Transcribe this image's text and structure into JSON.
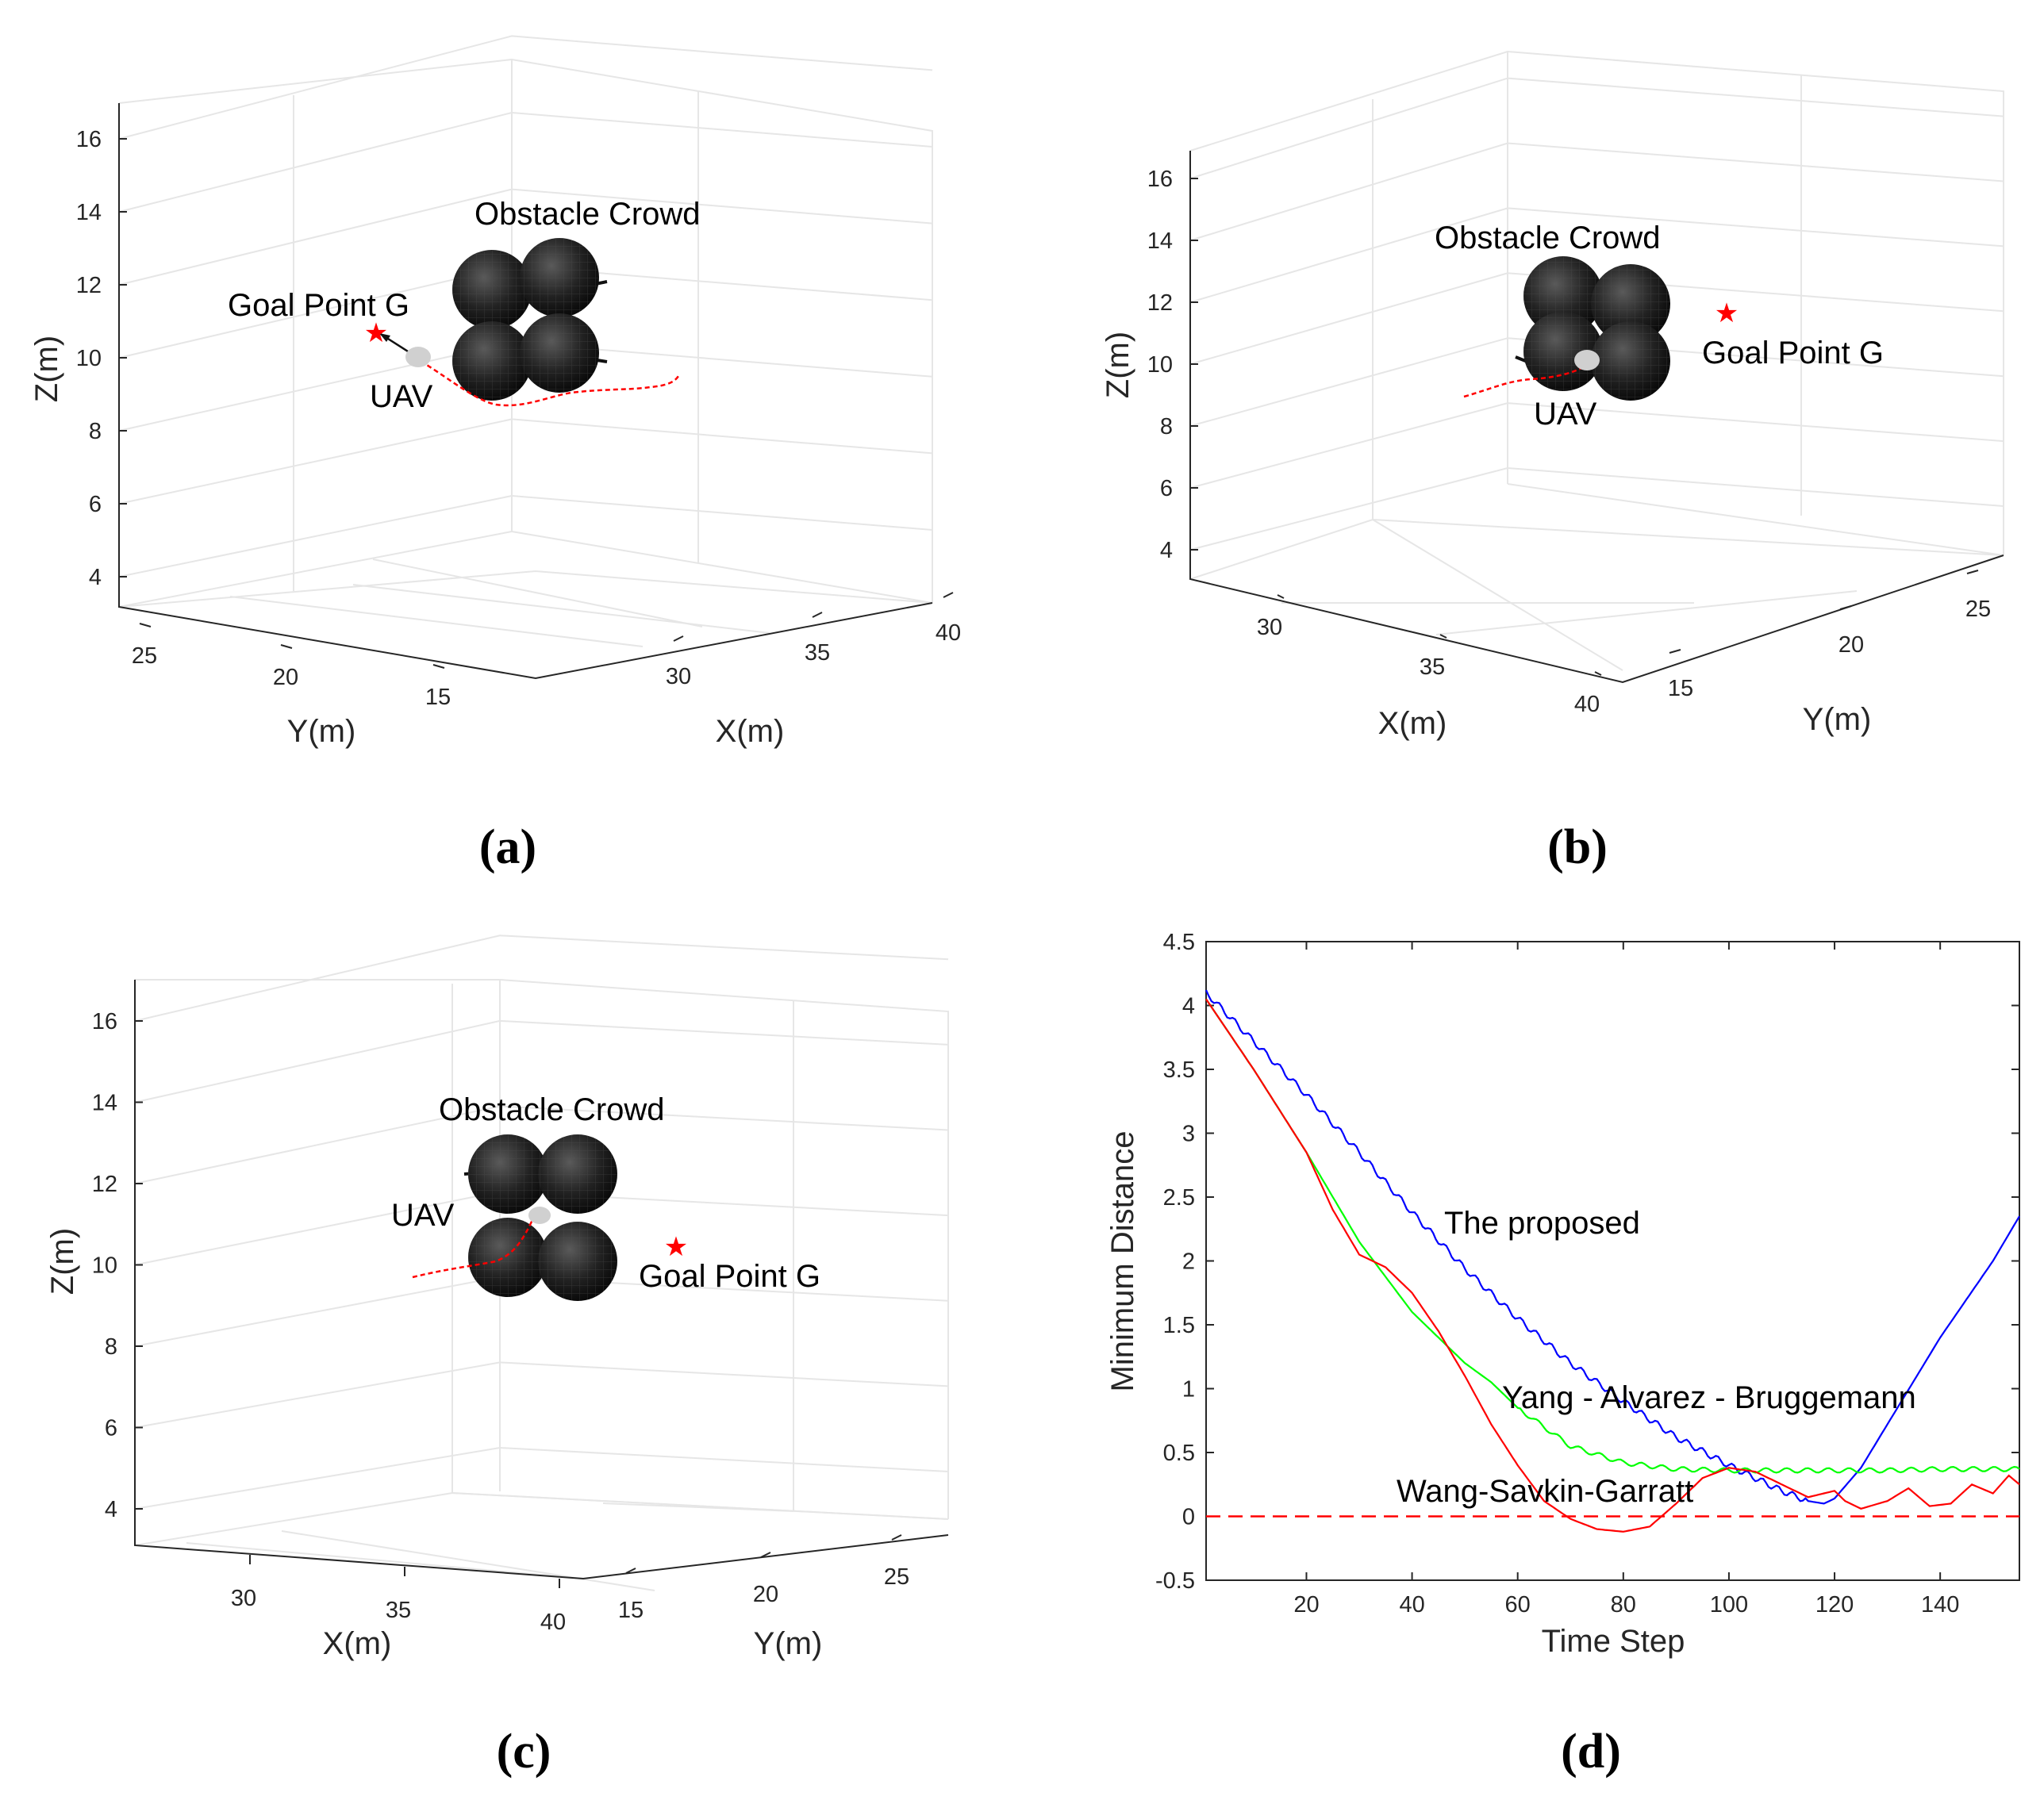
{
  "captions": [
    "(a)",
    "(b)",
    "(c)",
    "(d)"
  ],
  "panels_3d": [
    {
      "id": "a",
      "zlabel": "Z(m)",
      "z_ticks": [
        "4",
        "6",
        "8",
        "10",
        "12",
        "14",
        "16"
      ],
      "left_axis_label": "Y(m)",
      "left_ticks": [
        "25",
        "20",
        "15"
      ],
      "right_axis_label": "X(m)",
      "right_ticks": [
        "30",
        "35",
        "40"
      ],
      "obstacle_label": "Obstacle Crowd",
      "goal_label": "Goal Point G",
      "uav_label": "UAV"
    },
    {
      "id": "b",
      "zlabel": "Z(m)",
      "z_ticks": [
        "4",
        "6",
        "8",
        "10",
        "12",
        "14",
        "16"
      ],
      "left_axis_label": "X(m)",
      "left_ticks": [
        "30",
        "35",
        "40"
      ],
      "right_axis_label": "Y(m)",
      "right_ticks": [
        "15",
        "20",
        "25"
      ],
      "obstacle_label": "Obstacle Crowd",
      "goal_label": "Goal Point G",
      "uav_label": "UAV"
    },
    {
      "id": "c",
      "zlabel": "Z(m)",
      "z_ticks": [
        "4",
        "6",
        "8",
        "10",
        "12",
        "14",
        "16"
      ],
      "left_axis_label": "X(m)",
      "left_ticks": [
        "30",
        "35",
        "40"
      ],
      "right_axis_label": "Y(m)",
      "right_ticks": [
        "15",
        "20",
        "25"
      ],
      "obstacle_label": "Obstacle Crowd",
      "goal_label": "Goal Point G",
      "uav_label": "UAV"
    }
  ],
  "chart_data": {
    "type": "line",
    "xlabel": "Time Step",
    "ylabel": "Minimum Distance",
    "xlim": [
      1,
      155
    ],
    "ylim": [
      -0.5,
      4.5
    ],
    "x_ticks": [
      20,
      40,
      60,
      80,
      100,
      120,
      140
    ],
    "y_ticks": [
      -0.5,
      0,
      0.5,
      1,
      1.5,
      2,
      2.5,
      3,
      3.5,
      4,
      4.5
    ],
    "y_tick_labels": [
      "-0.5",
      "0",
      "0.5",
      "1",
      "1.5",
      "2",
      "2.5",
      "3",
      "3.5",
      "4",
      "4.5"
    ],
    "series": [
      {
        "name": "The proposed",
        "color": "#0000ff",
        "x": [
          1,
          10,
          20,
          30,
          40,
          50,
          60,
          70,
          80,
          90,
          100,
          105,
          110,
          115,
          118,
          120,
          125,
          130,
          135,
          140,
          145,
          150,
          155
        ],
        "y": [
          4.1,
          3.72,
          3.3,
          2.85,
          2.38,
          1.94,
          1.55,
          1.2,
          0.9,
          0.62,
          0.4,
          0.3,
          0.2,
          0.12,
          0.1,
          0.14,
          0.38,
          0.72,
          1.06,
          1.4,
          1.7,
          2.0,
          2.35
        ]
      },
      {
        "name": "Yang - Alvarez - Bruggemann",
        "color": "#00ff00",
        "x": [
          1,
          10,
          20,
          30,
          40,
          50,
          55,
          60,
          70,
          80,
          90,
          100,
          110,
          120,
          130,
          140,
          150,
          155
        ],
        "y": [
          4.05,
          3.5,
          2.85,
          2.15,
          1.6,
          1.2,
          1.05,
          0.85,
          0.55,
          0.42,
          0.37,
          0.36,
          0.36,
          0.36,
          0.36,
          0.37,
          0.37,
          0.37
        ]
      },
      {
        "name": "Wang-Savkin-Garratt",
        "color": "#ff0000",
        "x": [
          1,
          10,
          20,
          25,
          30,
          35,
          40,
          45,
          50,
          55,
          60,
          65,
          70,
          75,
          80,
          85,
          90,
          95,
          100,
          105,
          110,
          115,
          120,
          122,
          125,
          130,
          134,
          138,
          142,
          146,
          150,
          153,
          155
        ],
        "y": [
          4.05,
          3.5,
          2.85,
          2.4,
          2.05,
          1.95,
          1.75,
          1.45,
          1.1,
          0.72,
          0.4,
          0.12,
          -0.02,
          -0.1,
          -0.12,
          -0.08,
          0.1,
          0.3,
          0.38,
          0.35,
          0.25,
          0.15,
          0.2,
          0.12,
          0.06,
          0.12,
          0.22,
          0.08,
          0.1,
          0.25,
          0.18,
          0.32,
          0.25
        ]
      }
    ],
    "reference_line": {
      "y": 0,
      "style": "dashed",
      "color": "#ff0000"
    },
    "annotations": [
      {
        "text": "The proposed",
        "color": "#0000ff"
      },
      {
        "text": "Yang - Alvarez - Bruggemann",
        "color": "#00ff00"
      },
      {
        "text": "Wang-Savkin-Garratt",
        "color": "#ff0000"
      }
    ]
  }
}
